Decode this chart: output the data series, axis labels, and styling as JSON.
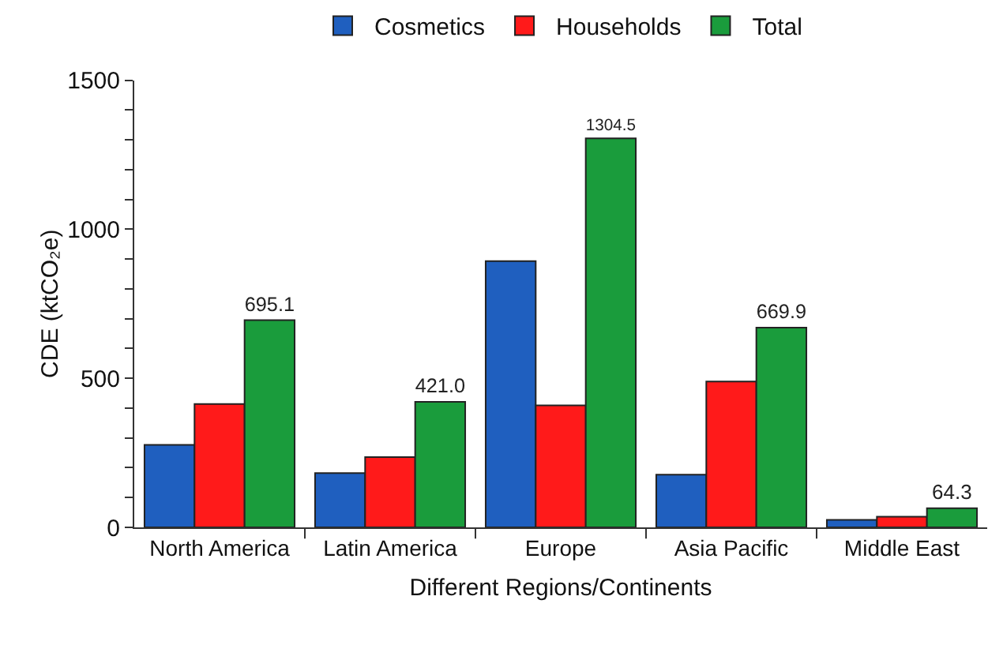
{
  "chart_data": {
    "type": "bar",
    "xlabel": "Different Regions/Continents",
    "ylabel": "CDE (ktCO₂e)",
    "categories": [
      "North America",
      "Latin America",
      "Europe",
      "Asia Pacific",
      "Middle East"
    ],
    "series": [
      {
        "name": "Cosmetics",
        "color": "#1f5fbf",
        "values": [
          277,
          182,
          893,
          177,
          25
        ]
      },
      {
        "name": "Households",
        "color": "#ff1a1a",
        "values": [
          414,
          236,
          409,
          489,
          36
        ]
      },
      {
        "name": "Total",
        "color": "#1a9c3c",
        "values": [
          695.1,
          421.0,
          1304.5,
          669.9,
          64.3
        ],
        "value_labels": [
          "695.1",
          "421.0",
          "1304.5",
          "669.9",
          "64.3"
        ]
      }
    ],
    "ylim": [
      0,
      1500
    ],
    "yticks": [
      0,
      {
        "value": 100,
        "label": null
      },
      {
        "value": 200,
        "label": null
      },
      {
        "value": 300,
        "label": null
      },
      {
        "value": 400,
        "label": null
      },
      500,
      {
        "value": 600,
        "label": null
      },
      {
        "value": 700,
        "label": null
      },
      {
        "value": 800,
        "label": null
      },
      {
        "value": 900,
        "label": null
      },
      1000,
      {
        "value": 1100,
        "label": null
      },
      {
        "value": 1200,
        "label": null
      },
      {
        "value": 1300,
        "label": null
      },
      {
        "value": 1400,
        "label": null
      },
      1500
    ],
    "grid": false,
    "legend": "top"
  }
}
